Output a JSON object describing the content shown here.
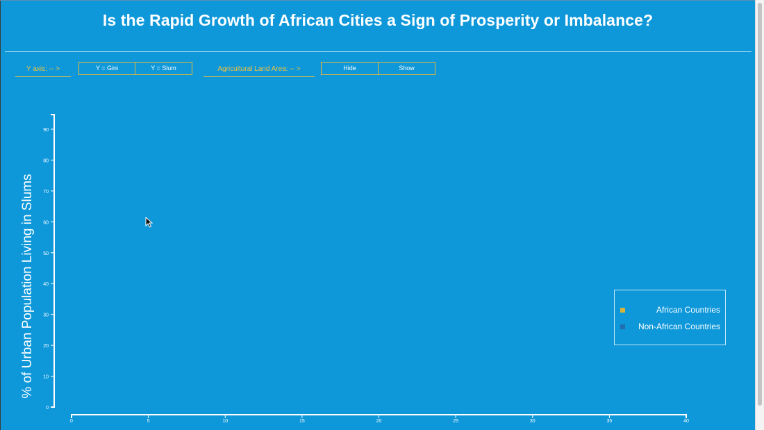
{
  "page": {
    "title": "Is the Rapid Growth of African Cities a Sign of Prosperity or Imbalance?"
  },
  "controls": {
    "y_axis_label": "Y axis: -- >",
    "y_gini_button": "Y = Gini",
    "y_slum_button": "Y = Slum",
    "agri_label": "Agricultural Land Area: -- >",
    "hide_button": "Hide",
    "show_button": "Show"
  },
  "colors": {
    "background": "#0e98da",
    "accent": "#f2c23c",
    "african": "#d4b43c",
    "non_african": "#1f6fb0"
  },
  "chart_data": {
    "type": "scatter",
    "title": "",
    "xlabel": "",
    "ylabel": "% of Urban Population Living in Slums",
    "xlim": [
      0,
      40
    ],
    "ylim": [
      0,
      95
    ],
    "x_ticks": [
      0,
      5,
      10,
      15,
      20,
      25,
      30,
      35,
      40
    ],
    "y_ticks": [
      0,
      10,
      20,
      30,
      40,
      50,
      60,
      70,
      80,
      90
    ],
    "grid": false,
    "legend_placement": "right",
    "series": [
      {
        "name": "African Countries",
        "color": "#d4b43c",
        "points": []
      },
      {
        "name": "Non-African Countries",
        "color": "#1f6fb0",
        "points": []
      }
    ]
  }
}
